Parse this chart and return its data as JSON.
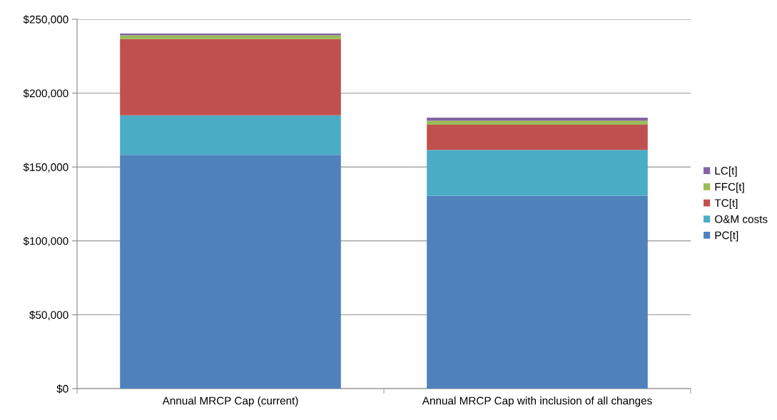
{
  "chart_data": {
    "type": "bar",
    "stacked": true,
    "categories": [
      "Annual MRCP Cap (current)",
      "Annual MRCP Cap with inclusion of all changes"
    ],
    "series": [
      {
        "name": "PC[t]",
        "color": "#4f81bd",
        "values": [
          158200,
          130600
        ]
      },
      {
        "name": "O&M costs",
        "color": "#4bacc6",
        "values": [
          26800,
          31000
        ]
      },
      {
        "name": "TC[t]",
        "color": "#c0504d",
        "values": [
          51600,
          17000
        ]
      },
      {
        "name": "FFC[t]",
        "color": "#9bbb59",
        "values": [
          2600,
          2700
        ]
      },
      {
        "name": "LC[t]",
        "color": "#8064a2",
        "values": [
          1100,
          2100
        ]
      }
    ],
    "ylim": [
      0,
      250000
    ],
    "yticks": [
      {
        "value": 0,
        "label": "$0"
      },
      {
        "value": 50000,
        "label": "$50,000"
      },
      {
        "value": 100000,
        "label": "$100,000"
      },
      {
        "value": 150000,
        "label": "$150,000"
      },
      {
        "value": 200000,
        "label": "$200,000"
      },
      {
        "value": 250000,
        "label": "$250,000"
      }
    ],
    "grid": "y",
    "legend": "right"
  }
}
